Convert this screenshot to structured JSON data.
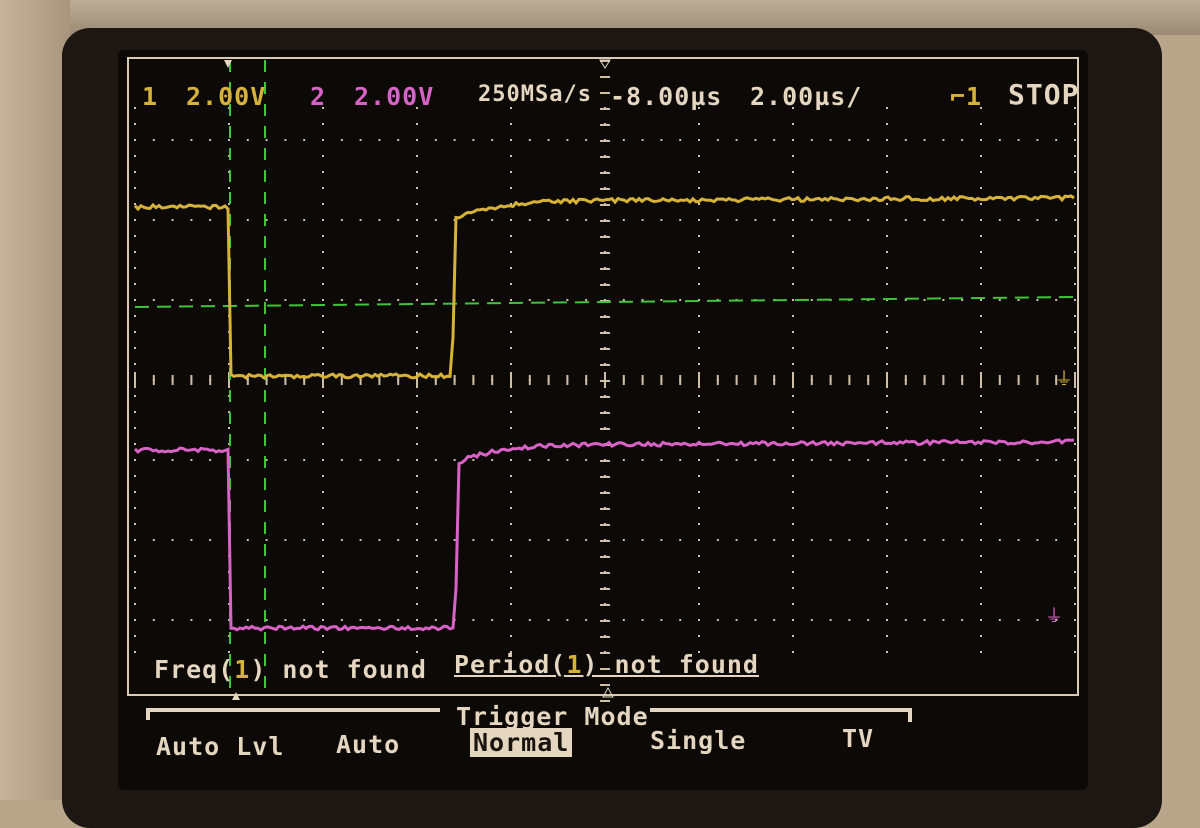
{
  "status_bar": {
    "ch1_label": "1",
    "ch1_scale": "2.00V",
    "ch2_label": "2",
    "ch2_scale": "2.00V",
    "sample_rate": "250MSa/s",
    "time_delay": "-8.00µs",
    "time_scale": "2.00µs/",
    "trigger_source": "⌐1",
    "run_state": "STOP"
  },
  "measurements": {
    "freq": {
      "name": "Freq(",
      "channel": "1",
      "result": ") not found"
    },
    "period": {
      "name": "Period(",
      "channel": "1",
      "result": ") not found"
    }
  },
  "softkeys": {
    "menu_title": "Trigger Mode",
    "items": [
      {
        "label": "Auto Lvl",
        "selected": false
      },
      {
        "label": "Auto",
        "selected": false
      },
      {
        "label": "Normal",
        "selected": true
      },
      {
        "label": "Single",
        "selected": false
      },
      {
        "label": "TV",
        "selected": false
      }
    ]
  },
  "colors": {
    "ch1": "#d7b239",
    "ch2": "#d862c6",
    "cursor": "#3fc43a",
    "text": "#e4d6bf"
  }
}
